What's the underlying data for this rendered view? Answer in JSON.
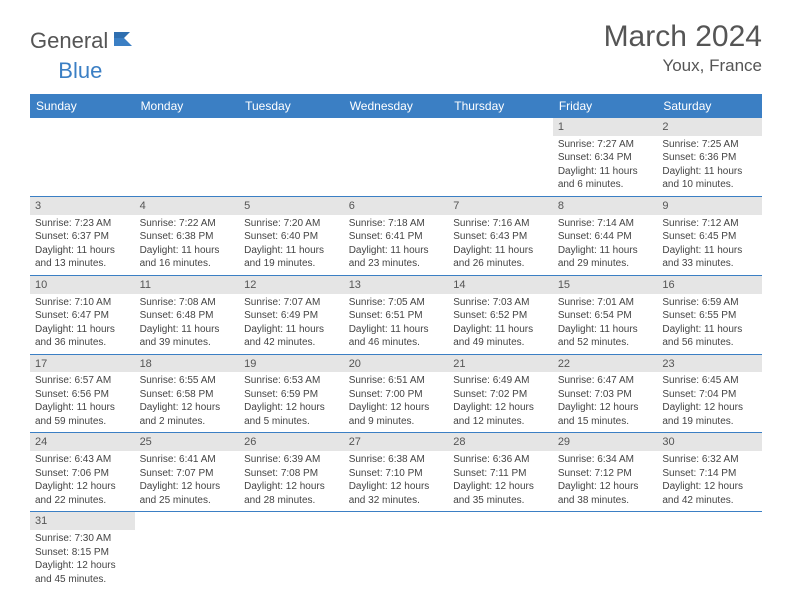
{
  "logo": {
    "general": "General",
    "blue": "Blue"
  },
  "title": "March 2024",
  "location": "Youx, France",
  "colors": {
    "header_bg": "#3b7fc4",
    "header_text": "#ffffff",
    "daynum_bg": "#e5e5e5",
    "border": "#3b7fc4",
    "text": "#444444"
  },
  "day_headers": [
    "Sunday",
    "Monday",
    "Tuesday",
    "Wednesday",
    "Thursday",
    "Friday",
    "Saturday"
  ],
  "weeks": [
    [
      {
        "n": "",
        "sr": "",
        "ss": "",
        "dl": ""
      },
      {
        "n": "",
        "sr": "",
        "ss": "",
        "dl": ""
      },
      {
        "n": "",
        "sr": "",
        "ss": "",
        "dl": ""
      },
      {
        "n": "",
        "sr": "",
        "ss": "",
        "dl": ""
      },
      {
        "n": "",
        "sr": "",
        "ss": "",
        "dl": ""
      },
      {
        "n": "1",
        "sr": "Sunrise: 7:27 AM",
        "ss": "Sunset: 6:34 PM",
        "dl": "Daylight: 11 hours and 6 minutes."
      },
      {
        "n": "2",
        "sr": "Sunrise: 7:25 AM",
        "ss": "Sunset: 6:36 PM",
        "dl": "Daylight: 11 hours and 10 minutes."
      }
    ],
    [
      {
        "n": "3",
        "sr": "Sunrise: 7:23 AM",
        "ss": "Sunset: 6:37 PM",
        "dl": "Daylight: 11 hours and 13 minutes."
      },
      {
        "n": "4",
        "sr": "Sunrise: 7:22 AM",
        "ss": "Sunset: 6:38 PM",
        "dl": "Daylight: 11 hours and 16 minutes."
      },
      {
        "n": "5",
        "sr": "Sunrise: 7:20 AM",
        "ss": "Sunset: 6:40 PM",
        "dl": "Daylight: 11 hours and 19 minutes."
      },
      {
        "n": "6",
        "sr": "Sunrise: 7:18 AM",
        "ss": "Sunset: 6:41 PM",
        "dl": "Daylight: 11 hours and 23 minutes."
      },
      {
        "n": "7",
        "sr": "Sunrise: 7:16 AM",
        "ss": "Sunset: 6:43 PM",
        "dl": "Daylight: 11 hours and 26 minutes."
      },
      {
        "n": "8",
        "sr": "Sunrise: 7:14 AM",
        "ss": "Sunset: 6:44 PM",
        "dl": "Daylight: 11 hours and 29 minutes."
      },
      {
        "n": "9",
        "sr": "Sunrise: 7:12 AM",
        "ss": "Sunset: 6:45 PM",
        "dl": "Daylight: 11 hours and 33 minutes."
      }
    ],
    [
      {
        "n": "10",
        "sr": "Sunrise: 7:10 AM",
        "ss": "Sunset: 6:47 PM",
        "dl": "Daylight: 11 hours and 36 minutes."
      },
      {
        "n": "11",
        "sr": "Sunrise: 7:08 AM",
        "ss": "Sunset: 6:48 PM",
        "dl": "Daylight: 11 hours and 39 minutes."
      },
      {
        "n": "12",
        "sr": "Sunrise: 7:07 AM",
        "ss": "Sunset: 6:49 PM",
        "dl": "Daylight: 11 hours and 42 minutes."
      },
      {
        "n": "13",
        "sr": "Sunrise: 7:05 AM",
        "ss": "Sunset: 6:51 PM",
        "dl": "Daylight: 11 hours and 46 minutes."
      },
      {
        "n": "14",
        "sr": "Sunrise: 7:03 AM",
        "ss": "Sunset: 6:52 PM",
        "dl": "Daylight: 11 hours and 49 minutes."
      },
      {
        "n": "15",
        "sr": "Sunrise: 7:01 AM",
        "ss": "Sunset: 6:54 PM",
        "dl": "Daylight: 11 hours and 52 minutes."
      },
      {
        "n": "16",
        "sr": "Sunrise: 6:59 AM",
        "ss": "Sunset: 6:55 PM",
        "dl": "Daylight: 11 hours and 56 minutes."
      }
    ],
    [
      {
        "n": "17",
        "sr": "Sunrise: 6:57 AM",
        "ss": "Sunset: 6:56 PM",
        "dl": "Daylight: 11 hours and 59 minutes."
      },
      {
        "n": "18",
        "sr": "Sunrise: 6:55 AM",
        "ss": "Sunset: 6:58 PM",
        "dl": "Daylight: 12 hours and 2 minutes."
      },
      {
        "n": "19",
        "sr": "Sunrise: 6:53 AM",
        "ss": "Sunset: 6:59 PM",
        "dl": "Daylight: 12 hours and 5 minutes."
      },
      {
        "n": "20",
        "sr": "Sunrise: 6:51 AM",
        "ss": "Sunset: 7:00 PM",
        "dl": "Daylight: 12 hours and 9 minutes."
      },
      {
        "n": "21",
        "sr": "Sunrise: 6:49 AM",
        "ss": "Sunset: 7:02 PM",
        "dl": "Daylight: 12 hours and 12 minutes."
      },
      {
        "n": "22",
        "sr": "Sunrise: 6:47 AM",
        "ss": "Sunset: 7:03 PM",
        "dl": "Daylight: 12 hours and 15 minutes."
      },
      {
        "n": "23",
        "sr": "Sunrise: 6:45 AM",
        "ss": "Sunset: 7:04 PM",
        "dl": "Daylight: 12 hours and 19 minutes."
      }
    ],
    [
      {
        "n": "24",
        "sr": "Sunrise: 6:43 AM",
        "ss": "Sunset: 7:06 PM",
        "dl": "Daylight: 12 hours and 22 minutes."
      },
      {
        "n": "25",
        "sr": "Sunrise: 6:41 AM",
        "ss": "Sunset: 7:07 PM",
        "dl": "Daylight: 12 hours and 25 minutes."
      },
      {
        "n": "26",
        "sr": "Sunrise: 6:39 AM",
        "ss": "Sunset: 7:08 PM",
        "dl": "Daylight: 12 hours and 28 minutes."
      },
      {
        "n": "27",
        "sr": "Sunrise: 6:38 AM",
        "ss": "Sunset: 7:10 PM",
        "dl": "Daylight: 12 hours and 32 minutes."
      },
      {
        "n": "28",
        "sr": "Sunrise: 6:36 AM",
        "ss": "Sunset: 7:11 PM",
        "dl": "Daylight: 12 hours and 35 minutes."
      },
      {
        "n": "29",
        "sr": "Sunrise: 6:34 AM",
        "ss": "Sunset: 7:12 PM",
        "dl": "Daylight: 12 hours and 38 minutes."
      },
      {
        "n": "30",
        "sr": "Sunrise: 6:32 AM",
        "ss": "Sunset: 7:14 PM",
        "dl": "Daylight: 12 hours and 42 minutes."
      }
    ],
    [
      {
        "n": "31",
        "sr": "Sunrise: 7:30 AM",
        "ss": "Sunset: 8:15 PM",
        "dl": "Daylight: 12 hours and 45 minutes."
      },
      {
        "n": "",
        "sr": "",
        "ss": "",
        "dl": ""
      },
      {
        "n": "",
        "sr": "",
        "ss": "",
        "dl": ""
      },
      {
        "n": "",
        "sr": "",
        "ss": "",
        "dl": ""
      },
      {
        "n": "",
        "sr": "",
        "ss": "",
        "dl": ""
      },
      {
        "n": "",
        "sr": "",
        "ss": "",
        "dl": ""
      },
      {
        "n": "",
        "sr": "",
        "ss": "",
        "dl": ""
      }
    ]
  ]
}
